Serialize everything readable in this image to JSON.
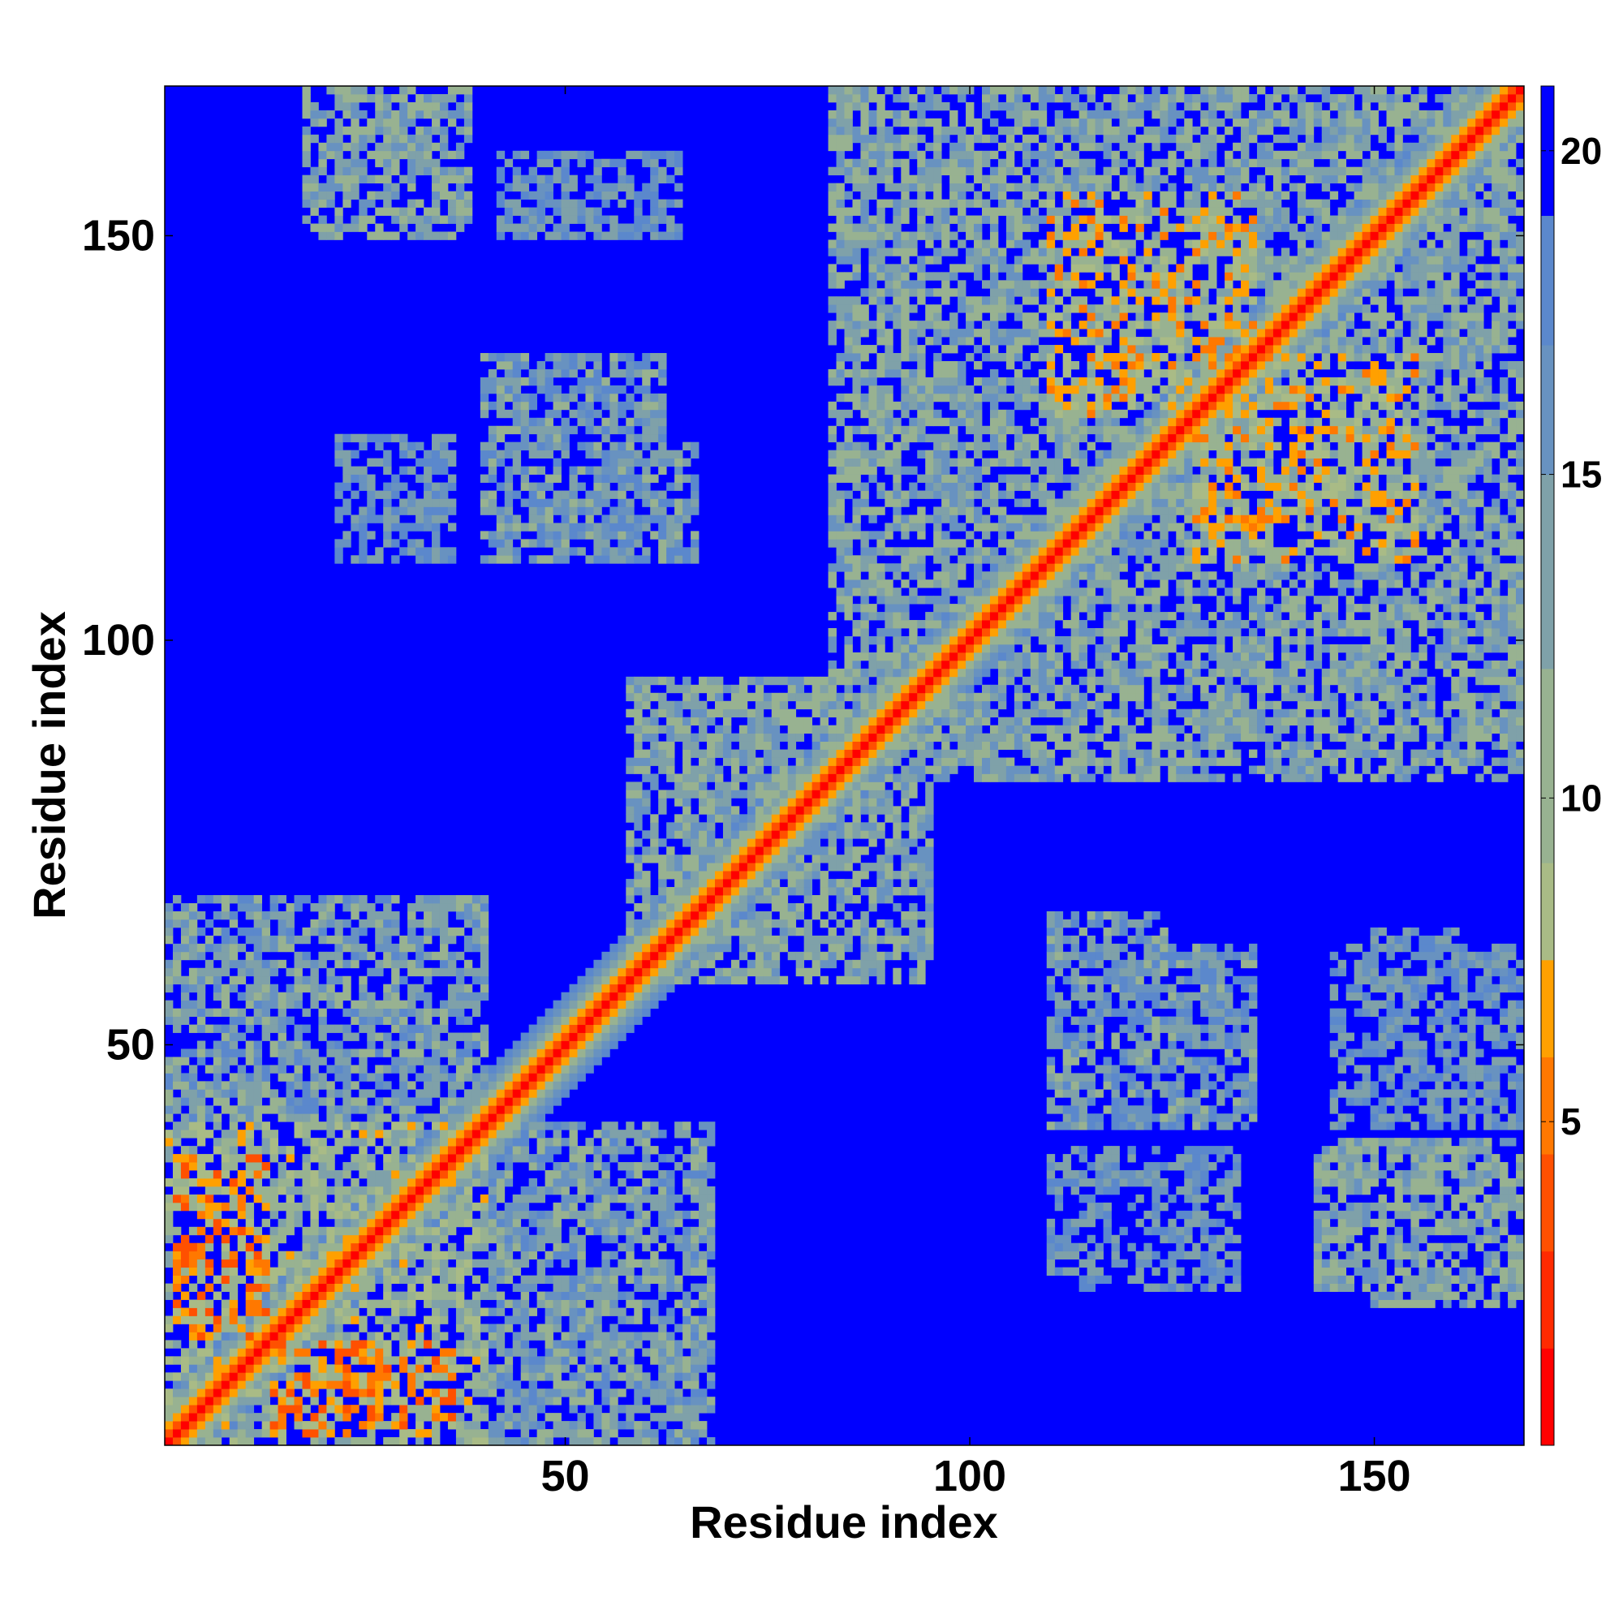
{
  "chart_data": {
    "type": "heatmap",
    "title": "",
    "xlabel": "Residue index",
    "ylabel": "Residue index",
    "xlim": [
      0.5,
      168.5
    ],
    "ylim": [
      0.5,
      168.5
    ],
    "n_residues": 168,
    "x_ticks": [
      50,
      100,
      150
    ],
    "x_tick_labels": [
      "50",
      "100",
      "150"
    ],
    "y_ticks": [
      50,
      100,
      150
    ],
    "y_tick_labels": [
      "50",
      "100",
      "150"
    ],
    "colorbar": {
      "range": [
        0,
        21
      ],
      "ticks": [
        5,
        10,
        15,
        20
      ],
      "tick_labels": [
        "5",
        "10",
        "15",
        "20"
      ],
      "levels": [
        {
          "max": 1.5,
          "color": "#ff0000"
        },
        {
          "max": 3.0,
          "color": "#ff2a00"
        },
        {
          "max": 4.5,
          "color": "#ff5000"
        },
        {
          "max": 6.0,
          "color": "#ff7800"
        },
        {
          "max": 7.5,
          "color": "#ffa000"
        },
        {
          "max": 9.0,
          "color": "#a9bb86"
        },
        {
          "max": 12.0,
          "color": "#98b291"
        },
        {
          "max": 15.0,
          "color": "#7fa1a9"
        },
        {
          "max": 17.0,
          "color": "#6892c0"
        },
        {
          "max": 19.0,
          "color": "#5b88cc"
        },
        {
          "max": 99.0,
          "color": "#0000ff"
        }
      ]
    },
    "diagonal_band": {
      "width_residues": 5,
      "profile": [
        1.0,
        3.5,
        6.5,
        9.5,
        13.0,
        16.5,
        18.5
      ]
    },
    "contact_clusters": [
      {
        "x": [
          1,
          40
        ],
        "y": [
          1,
          40
        ],
        "distance": 11
      },
      {
        "x": [
          14,
          36
        ],
        "y": [
          2,
          13
        ],
        "distance": 7
      },
      {
        "x": [
          2,
          13
        ],
        "y": [
          14,
          36
        ],
        "distance": 7
      },
      {
        "x": [
          40,
          68
        ],
        "y": [
          1,
          40
        ],
        "distance": 14
      },
      {
        "x": [
          1,
          40
        ],
        "y": [
          40,
          68
        ],
        "distance": 14
      },
      {
        "x": [
          58,
          95
        ],
        "y": [
          58,
          95
        ],
        "distance": 13
      },
      {
        "x": [
          83,
          168
        ],
        "y": [
          83,
          168
        ],
        "distance": 13
      },
      {
        "x": [
          110,
          135
        ],
        "y": [
          128,
          155
        ],
        "distance": 9
      },
      {
        "x": [
          128,
          155
        ],
        "y": [
          110,
          135
        ],
        "distance": 9
      },
      {
        "x": [
          85,
          110
        ],
        "y": [
          145,
          168
        ],
        "distance": 14
      },
      {
        "x": [
          145,
          168
        ],
        "y": [
          85,
          110
        ],
        "distance": 14
      },
      {
        "x": [
          18,
          38
        ],
        "y": [
          150,
          168
        ],
        "distance": 13
      },
      {
        "x": [
          150,
          168
        ],
        "y": [
          18,
          38
        ],
        "distance": 13
      },
      {
        "x": [
          42,
          64
        ],
        "y": [
          150,
          160
        ],
        "distance": 16
      },
      {
        "x": [
          150,
          160
        ],
        "y": [
          42,
          64
        ],
        "distance": 16
      },
      {
        "x": [
          22,
          36
        ],
        "y": [
          110,
          125
        ],
        "distance": 16
      },
      {
        "x": [
          110,
          125
        ],
        "y": [
          22,
          36
        ],
        "distance": 16
      },
      {
        "x": [
          44,
          66
        ],
        "y": [
          110,
          124
        ],
        "distance": 15
      },
      {
        "x": [
          110,
          124
        ],
        "y": [
          44,
          66
        ],
        "distance": 15
      },
      {
        "x": [
          110,
          135
        ],
        "y": [
          40,
          62
        ],
        "distance": 15
      },
      {
        "x": [
          40,
          62
        ],
        "y": [
          110,
          135
        ],
        "distance": 15
      },
      {
        "x": [
          113,
          133
        ],
        "y": [
          20,
          37
        ],
        "distance": 16
      },
      {
        "x": [
          143,
          168
        ],
        "y": [
          20,
          38
        ],
        "distance": 13
      },
      {
        "x": [
          145,
          168
        ],
        "y": [
          40,
          62
        ],
        "distance": 16
      }
    ]
  }
}
